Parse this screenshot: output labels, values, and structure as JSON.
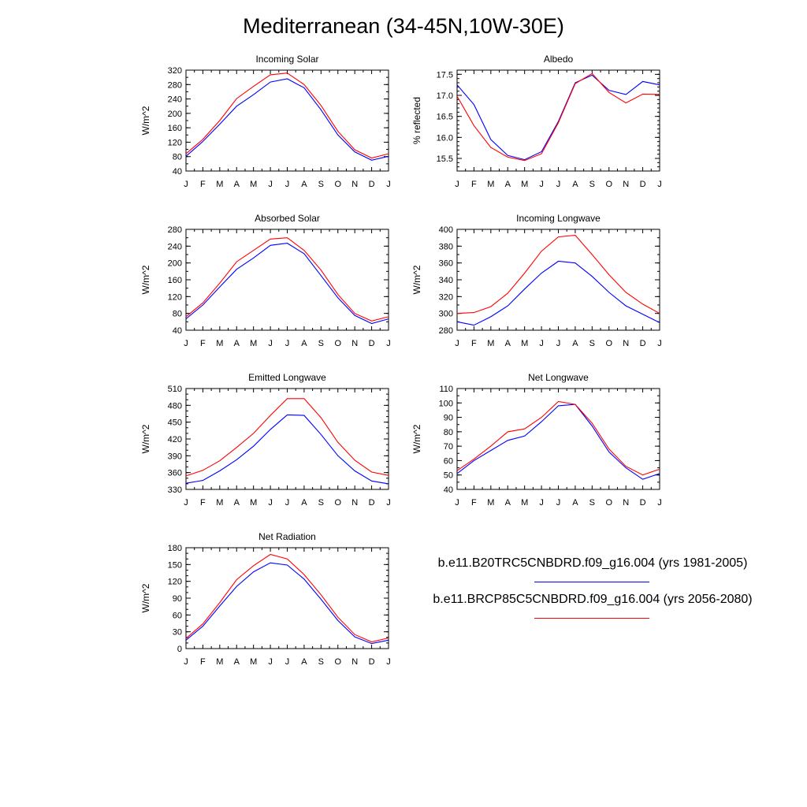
{
  "title": "Mediterranean (34-45N,10W-30E)",
  "colors": {
    "series1": "#0000ff",
    "series2": "#ff0000",
    "axis": "#000000"
  },
  "legend": [
    {
      "label": "b.e11.B20TRC5CNBDRD.f09_g16.004 (yrs 1981-2005)",
      "color": "#0000ff"
    },
    {
      "label": "b.e11.BRCP85C5CNBDRD.f09_g16.004 (yrs 2056-2080)",
      "color": "#ff0000"
    }
  ],
  "chart_data": [
    {
      "type": "line",
      "title": "Incoming Solar",
      "ylabel": "W/m^2",
      "x": [
        "J",
        "F",
        "M",
        "A",
        "M",
        "J",
        "J",
        "A",
        "S",
        "O",
        "N",
        "D",
        "J"
      ],
      "ylim": [
        40,
        320
      ],
      "yticks": [
        "40",
        "80",
        "120",
        "160",
        "200",
        "240",
        "280",
        "320"
      ],
      "yminor": 20,
      "series": [
        {
          "color": "#0000ff",
          "values": [
            81,
            122,
            170,
            220,
            252,
            287,
            296,
            271,
            210,
            140,
            93,
            70,
            81
          ]
        },
        {
          "color": "#ff0000",
          "values": [
            88,
            128,
            180,
            241,
            275,
            307,
            312,
            280,
            222,
            150,
            99,
            76,
            88
          ]
        }
      ]
    },
    {
      "type": "line",
      "title": "Albedo",
      "ylabel": "% reflected",
      "x": [
        "J",
        "F",
        "M",
        "A",
        "M",
        "J",
        "J",
        "A",
        "S",
        "O",
        "N",
        "D",
        "J"
      ],
      "ylim": [
        15.2,
        17.6
      ],
      "yticks": [
        "15.5",
        "16.0",
        "16.5",
        "17.0",
        "17.5"
      ],
      "yminor": 0.1,
      "series": [
        {
          "color": "#0000ff",
          "values": [
            17.25,
            16.78,
            15.95,
            15.57,
            15.47,
            15.66,
            16.38,
            17.3,
            17.48,
            17.12,
            17.02,
            17.33,
            17.25
          ]
        },
        {
          "color": "#ff0000",
          "values": [
            16.98,
            16.28,
            15.76,
            15.53,
            15.45,
            15.61,
            16.35,
            17.28,
            17.52,
            17.07,
            16.82,
            17.03,
            17.02
          ]
        }
      ]
    },
    {
      "type": "line",
      "title": "Absorbed Solar",
      "ylabel": "W/m^2",
      "x": [
        "J",
        "F",
        "M",
        "A",
        "M",
        "J",
        "J",
        "A",
        "S",
        "O",
        "N",
        "D",
        "J"
      ],
      "ylim": [
        40,
        280
      ],
      "yticks": [
        "40",
        "80",
        "120",
        "160",
        "200",
        "240",
        "280"
      ],
      "yminor": 20,
      "series": [
        {
          "color": "#0000ff",
          "values": [
            67,
            100,
            143,
            185,
            212,
            242,
            247,
            222,
            170,
            117,
            75,
            56,
            67
          ]
        },
        {
          "color": "#ff0000",
          "values": [
            72,
            105,
            152,
            203,
            230,
            257,
            260,
            230,
            183,
            125,
            80,
            62,
            72
          ]
        }
      ]
    },
    {
      "type": "line",
      "title": "Incoming Longwave",
      "ylabel": "W/m^2",
      "x": [
        "J",
        "F",
        "M",
        "A",
        "M",
        "J",
        "J",
        "A",
        "S",
        "O",
        "N",
        "D",
        "J"
      ],
      "ylim": [
        280,
        400
      ],
      "yticks": [
        "280",
        "300",
        "320",
        "340",
        "360",
        "380",
        "400"
      ],
      "yminor": 10,
      "series": [
        {
          "color": "#0000ff",
          "values": [
            290,
            286,
            296,
            309,
            329,
            348,
            362,
            360,
            344,
            325,
            309,
            299,
            289
          ]
        },
        {
          "color": "#ff0000",
          "values": [
            300,
            301,
            308,
            324,
            348,
            374,
            391,
            393,
            370,
            346,
            325,
            311,
            300
          ]
        }
      ]
    },
    {
      "type": "line",
      "title": "Emitted Longwave",
      "ylabel": "W/m^2",
      "x": [
        "J",
        "F",
        "M",
        "A",
        "M",
        "J",
        "J",
        "A",
        "S",
        "O",
        "N",
        "D",
        "J"
      ],
      "ylim": [
        330,
        510
      ],
      "yticks": [
        "330",
        "360",
        "390",
        "420",
        "450",
        "480",
        "510"
      ],
      "yminor": 10,
      "series": [
        {
          "color": "#0000ff",
          "values": [
            341,
            346,
            363,
            383,
            407,
            437,
            463,
            462,
            428,
            390,
            363,
            345,
            340
          ]
        },
        {
          "color": "#ff0000",
          "values": [
            354,
            364,
            381,
            405,
            430,
            462,
            492,
            492,
            458,
            414,
            382,
            361,
            355
          ]
        }
      ]
    },
    {
      "type": "line",
      "title": "Net Longwave",
      "ylabel": "W/m^2",
      "x": [
        "J",
        "F",
        "M",
        "A",
        "M",
        "J",
        "J",
        "A",
        "S",
        "O",
        "N",
        "D",
        "J"
      ],
      "ylim": [
        40,
        110
      ],
      "yticks": [
        "40",
        "50",
        "60",
        "70",
        "80",
        "90",
        "100",
        "110"
      ],
      "yminor": 5,
      "series": [
        {
          "color": "#0000ff",
          "values": [
            51,
            60,
            67,
            74,
            77,
            87,
            98,
            99,
            84,
            66,
            55,
            47,
            51
          ]
        },
        {
          "color": "#ff0000",
          "values": [
            53,
            61,
            70,
            80,
            82,
            90,
            101,
            99,
            86,
            68,
            56,
            50,
            54
          ]
        }
      ]
    },
    {
      "type": "line",
      "title": "Net Radiation",
      "ylabel": "W/m^2",
      "x": [
        "J",
        "F",
        "M",
        "A",
        "M",
        "J",
        "J",
        "A",
        "S",
        "O",
        "N",
        "D",
        "J"
      ],
      "ylim": [
        0,
        180
      ],
      "yticks": [
        "0",
        "30",
        "60",
        "90",
        "120",
        "150",
        "180"
      ],
      "yminor": 10,
      "series": [
        {
          "color": "#0000ff",
          "values": [
            15,
            40,
            76,
            111,
            137,
            153,
            149,
            124,
            88,
            50,
            21,
            9,
            15
          ]
        },
        {
          "color": "#ff0000",
          "values": [
            18,
            44,
            82,
            123,
            148,
            168,
            160,
            132,
            96,
            56,
            25,
            12,
            19
          ]
        }
      ]
    }
  ]
}
